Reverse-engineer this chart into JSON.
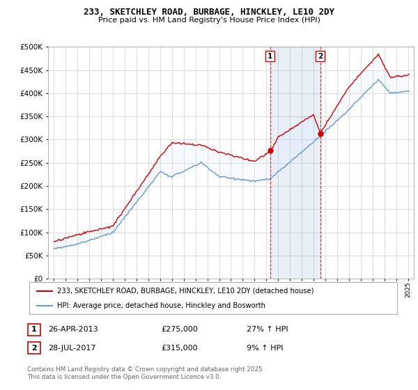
{
  "title": "233, SKETCHLEY ROAD, BURBAGE, HINCKLEY, LE10 2DY",
  "subtitle": "Price paid vs. HM Land Registry's House Price Index (HPI)",
  "legend_label_red": "233, SKETCHLEY ROAD, BURBAGE, HINCKLEY, LE10 2DY (detached house)",
  "legend_label_blue": "HPI: Average price, detached house, Hinckley and Bosworth",
  "footnote": "Contains HM Land Registry data © Crown copyright and database right 2025.\nThis data is licensed under the Open Government Licence v3.0.",
  "transaction1_date": "26-APR-2013",
  "transaction1_price": "£275,000",
  "transaction1_hpi": "27% ↑ HPI",
  "transaction2_date": "28-JUL-2017",
  "transaction2_price": "£315,000",
  "transaction2_hpi": "9% ↑ HPI",
  "marker1_x": 2013.32,
  "marker2_x": 2017.57,
  "ylim": [
    0,
    500000
  ],
  "xlim_start": 1994.5,
  "xlim_end": 2025.5,
  "color_red": "#cc0000",
  "color_blue": "#6699cc",
  "color_fill": "#ddeeff",
  "background_chart": "#ffffff",
  "grid_color": "#cccccc"
}
